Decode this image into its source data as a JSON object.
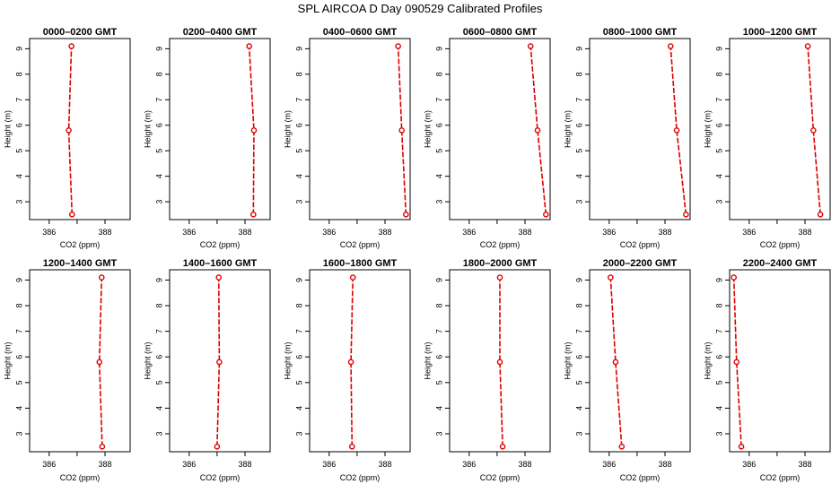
{
  "figure": {
    "title": "SPL AIRCOA D  Day 090529  Calibrated Profiles"
  },
  "colors": {
    "profile": "#dd0000",
    "axis": "#000000"
  },
  "chart_data": [
    {
      "type": "line",
      "title": "0000–0200 GMT",
      "xlabel": "CO2 (ppm)",
      "ylabel": "Height (m)",
      "xlim": [
        385.3,
        388.9
      ],
      "ylim": [
        2.3,
        9.4
      ],
      "xticks": [
        {
          "v": 386,
          "label": "386"
        },
        {
          "v": 387,
          "label": ""
        },
        {
          "v": 388,
          "label": "388"
        }
      ],
      "yticks": [
        3,
        4,
        5,
        6,
        7,
        8,
        9
      ],
      "points": [
        {
          "x": 386.82,
          "y": 2.5
        },
        {
          "x": 386.7,
          "y": 5.8
        },
        {
          "x": 386.8,
          "y": 9.1
        }
      ]
    },
    {
      "type": "line",
      "title": "0200–0400 GMT",
      "xlabel": "CO2 (ppm)",
      "ylabel": "Height (m)",
      "xlim": [
        385.3,
        388.9
      ],
      "ylim": [
        2.3,
        9.4
      ],
      "xticks": [
        {
          "v": 386,
          "label": "386"
        },
        {
          "v": 387,
          "label": ""
        },
        {
          "v": 388,
          "label": "388"
        }
      ],
      "yticks": [
        3,
        4,
        5,
        6,
        7,
        8,
        9
      ],
      "points": [
        {
          "x": 388.3,
          "y": 2.5
        },
        {
          "x": 388.32,
          "y": 5.8
        },
        {
          "x": 388.15,
          "y": 9.1
        }
      ]
    },
    {
      "type": "line",
      "title": "0400–0600 GMT",
      "xlabel": "CO2 (ppm)",
      "ylabel": "Height (m)",
      "xlim": [
        385.3,
        388.9
      ],
      "ylim": [
        2.3,
        9.4
      ],
      "xticks": [
        {
          "v": 386,
          "label": "386"
        },
        {
          "v": 387,
          "label": ""
        },
        {
          "v": 388,
          "label": "388"
        }
      ],
      "yticks": [
        3,
        4,
        5,
        6,
        7,
        8,
        9
      ],
      "points": [
        {
          "x": 388.75,
          "y": 2.5
        },
        {
          "x": 388.6,
          "y": 5.8
        },
        {
          "x": 388.47,
          "y": 9.1
        }
      ]
    },
    {
      "type": "line",
      "title": "0600–0800 GMT",
      "xlabel": "CO2 (ppm)",
      "ylabel": "Height (m)",
      "xlim": [
        385.3,
        388.9
      ],
      "ylim": [
        2.3,
        9.4
      ],
      "xticks": [
        {
          "v": 386,
          "label": "386"
        },
        {
          "v": 387,
          "label": ""
        },
        {
          "v": 388,
          "label": "388"
        }
      ],
      "yticks": [
        3,
        4,
        5,
        6,
        7,
        8,
        9
      ],
      "points": [
        {
          "x": 388.75,
          "y": 2.5
        },
        {
          "x": 388.45,
          "y": 5.8
        },
        {
          "x": 388.2,
          "y": 9.1
        }
      ]
    },
    {
      "type": "line",
      "title": "0800–1000 GMT",
      "xlabel": "CO2 (ppm)",
      "ylabel": "Height (m)",
      "xlim": [
        385.3,
        388.9
      ],
      "ylim": [
        2.3,
        9.4
      ],
      "xticks": [
        {
          "v": 386,
          "label": "386"
        },
        {
          "v": 387,
          "label": ""
        },
        {
          "v": 388,
          "label": "388"
        }
      ],
      "yticks": [
        3,
        4,
        5,
        6,
        7,
        8,
        9
      ],
      "points": [
        {
          "x": 388.75,
          "y": 2.5
        },
        {
          "x": 388.42,
          "y": 5.8
        },
        {
          "x": 388.2,
          "y": 9.1
        }
      ]
    },
    {
      "type": "line",
      "title": "1000–1200 GMT",
      "xlabel": "CO2 (ppm)",
      "ylabel": "Height (m)",
      "xlim": [
        385.3,
        388.9
      ],
      "ylim": [
        2.3,
        9.4
      ],
      "xticks": [
        {
          "v": 386,
          "label": "386"
        },
        {
          "v": 387,
          "label": ""
        },
        {
          "v": 388,
          "label": "388"
        }
      ],
      "yticks": [
        3,
        4,
        5,
        6,
        7,
        8,
        9
      ],
      "points": [
        {
          "x": 388.55,
          "y": 2.5
        },
        {
          "x": 388.3,
          "y": 5.8
        },
        {
          "x": 388.1,
          "y": 9.1
        }
      ]
    },
    {
      "type": "line",
      "title": "1200–1400 GMT",
      "xlabel": "CO2 (ppm)",
      "ylabel": "Height (m)",
      "xlim": [
        385.3,
        388.9
      ],
      "ylim": [
        2.3,
        9.4
      ],
      "xticks": [
        {
          "v": 386,
          "label": "386"
        },
        {
          "v": 387,
          "label": ""
        },
        {
          "v": 388,
          "label": "388"
        }
      ],
      "yticks": [
        3,
        4,
        5,
        6,
        7,
        8,
        9
      ],
      "points": [
        {
          "x": 387.9,
          "y": 2.5
        },
        {
          "x": 387.8,
          "y": 5.8
        },
        {
          "x": 387.88,
          "y": 9.1
        }
      ]
    },
    {
      "type": "line",
      "title": "1400–1600 GMT",
      "xlabel": "CO2 (ppm)",
      "ylabel": "Height (m)",
      "xlim": [
        385.3,
        388.9
      ],
      "ylim": [
        2.3,
        9.4
      ],
      "xticks": [
        {
          "v": 386,
          "label": "386"
        },
        {
          "v": 387,
          "label": ""
        },
        {
          "v": 388,
          "label": "388"
        }
      ],
      "yticks": [
        3,
        4,
        5,
        6,
        7,
        8,
        9
      ],
      "points": [
        {
          "x": 387.0,
          "y": 2.5
        },
        {
          "x": 387.08,
          "y": 5.8
        },
        {
          "x": 387.06,
          "y": 9.1
        }
      ]
    },
    {
      "type": "line",
      "title": "1600–1800 GMT",
      "xlabel": "CO2 (ppm)",
      "ylabel": "Height (m)",
      "xlim": [
        385.3,
        388.9
      ],
      "ylim": [
        2.3,
        9.4
      ],
      "xticks": [
        {
          "v": 386,
          "label": "386"
        },
        {
          "v": 387,
          "label": ""
        },
        {
          "v": 388,
          "label": "388"
        }
      ],
      "yticks": [
        3,
        4,
        5,
        6,
        7,
        8,
        9
      ],
      "points": [
        {
          "x": 386.82,
          "y": 2.5
        },
        {
          "x": 386.78,
          "y": 5.8
        },
        {
          "x": 386.85,
          "y": 9.1
        }
      ]
    },
    {
      "type": "line",
      "title": "1800–2000 GMT",
      "xlabel": "CO2 (ppm)",
      "ylabel": "Height (m)",
      "xlim": [
        385.3,
        388.9
      ],
      "ylim": [
        2.3,
        9.4
      ],
      "xticks": [
        {
          "v": 386,
          "label": "386"
        },
        {
          "v": 387,
          "label": ""
        },
        {
          "v": 388,
          "label": "388"
        }
      ],
      "yticks": [
        3,
        4,
        5,
        6,
        7,
        8,
        9
      ],
      "points": [
        {
          "x": 387.2,
          "y": 2.5
        },
        {
          "x": 387.1,
          "y": 5.8
        },
        {
          "x": 387.1,
          "y": 9.1
        }
      ]
    },
    {
      "type": "line",
      "title": "2000–2200 GMT",
      "xlabel": "CO2 (ppm)",
      "ylabel": "Height (m)",
      "xlim": [
        385.3,
        388.9
      ],
      "ylim": [
        2.3,
        9.4
      ],
      "xticks": [
        {
          "v": 386,
          "label": "386"
        },
        {
          "v": 387,
          "label": ""
        },
        {
          "v": 388,
          "label": "388"
        }
      ],
      "yticks": [
        3,
        4,
        5,
        6,
        7,
        8,
        9
      ],
      "points": [
        {
          "x": 386.45,
          "y": 2.5
        },
        {
          "x": 386.23,
          "y": 5.8
        },
        {
          "x": 386.05,
          "y": 9.1
        }
      ]
    },
    {
      "type": "line",
      "title": "2200–2400 GMT",
      "xlabel": "CO2 (ppm)",
      "ylabel": "Height (m)",
      "xlim": [
        385.3,
        388.9
      ],
      "ylim": [
        2.3,
        9.4
      ],
      "xticks": [
        {
          "v": 386,
          "label": "386"
        },
        {
          "v": 387,
          "label": ""
        },
        {
          "v": 388,
          "label": "388"
        }
      ],
      "yticks": [
        3,
        4,
        5,
        6,
        7,
        8,
        9
      ],
      "points": [
        {
          "x": 385.72,
          "y": 2.5
        },
        {
          "x": 385.55,
          "y": 5.8
        },
        {
          "x": 385.45,
          "y": 9.1
        }
      ]
    }
  ]
}
